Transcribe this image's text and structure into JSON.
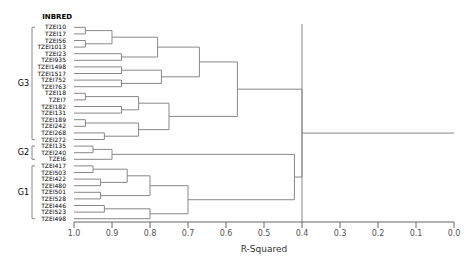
{
  "chart_data": {
    "type": "dendrogram",
    "title": "",
    "xlabel": "R-Squared",
    "header": "INBRED",
    "color": "#888888",
    "leaf_height": 1.0,
    "root_line_to": 0.0,
    "vline": 0.4,
    "xlim": [
      1.0,
      0.0
    ],
    "xticks": [
      {
        "value": 1.0,
        "label": "1.0"
      },
      0.9,
      0.8,
      0.7,
      0.6,
      0.5,
      0.4,
      0.3,
      0.2,
      0.1,
      {
        "value": 0.0,
        "label": "0.0"
      }
    ],
    "groups": [
      {
        "name": "G3",
        "first": "TZEI10",
        "last": "TZEI272"
      },
      {
        "name": "G2",
        "first": "TZEI135",
        "last": "TZEI6"
      },
      {
        "name": "G1",
        "first": "TZEI417",
        "last": "TZEI498"
      }
    ],
    "tree": {
      "height": 0.4,
      "children": [
        {
          "height": 0.57,
          "children": [
            {
              "height": 0.67,
              "children": [
                {
                  "height": 0.78,
                  "children": [
                    {
                      "height": 0.9,
                      "children": [
                        {
                          "height": 0.97,
                          "children": [
                            "TZEI10",
                            "TZEI17"
                          ]
                        },
                        {
                          "height": 0.97,
                          "children": [
                            "TZEI56",
                            "TZEI1013"
                          ]
                        }
                      ]
                    },
                    {
                      "height": 0.875,
                      "children": [
                        "TZEI23",
                        "TZEI935"
                      ]
                    }
                  ]
                },
                {
                  "height": 0.77,
                  "children": [
                    {
                      "height": 0.875,
                      "children": [
                        "TZEI1498",
                        "TZEI1517"
                      ]
                    },
                    {
                      "height": 0.875,
                      "children": [
                        "TZEI752",
                        "TZEI763"
                      ]
                    }
                  ]
                }
              ]
            },
            {
              "height": 0.75,
              "children": [
                {
                  "height": 0.83,
                  "children": [
                    {
                      "height": 0.97,
                      "children": [
                        "TZEI18",
                        "TZEI7"
                      ]
                    },
                    {
                      "height": 0.875,
                      "children": [
                        "TZEI182",
                        "TZEI131"
                      ]
                    }
                  ]
                },
                {
                  "height": 0.83,
                  "children": [
                    {
                      "height": 0.97,
                      "children": [
                        "TZEI189",
                        "TZEI242"
                      ]
                    },
                    {
                      "height": 0.92,
                      "children": [
                        "TZEI268",
                        "TZEI272"
                      ]
                    }
                  ]
                }
              ]
            }
          ]
        },
        {
          "height": 0.42,
          "children": [
            {
              "height": 0.9,
              "children": [
                {
                  "height": 0.95,
                  "children": [
                    "TZEI135",
                    "TZEI240"
                  ]
                },
                "TZEI6"
              ]
            },
            {
              "height": 0.7,
              "children": [
                {
                  "height": 0.8,
                  "children": [
                    {
                      "height": 0.86,
                      "children": [
                        {
                          "height": 0.95,
                          "children": [
                            "TZEI417",
                            "TZEI503"
                          ]
                        },
                        {
                          "height": 0.93,
                          "children": [
                            "TZEI422",
                            "TZEI480"
                          ]
                        }
                      ]
                    },
                    {
                      "height": 0.93,
                      "children": [
                        "TZEI501",
                        "TZEI528"
                      ]
                    }
                  ]
                },
                {
                  "height": 0.8,
                  "children": [
                    {
                      "height": 0.92,
                      "children": [
                        "TZEI446",
                        "TZEI523"
                      ]
                    },
                    "TZEI498"
                  ]
                }
              ]
            }
          ]
        }
      ]
    }
  }
}
